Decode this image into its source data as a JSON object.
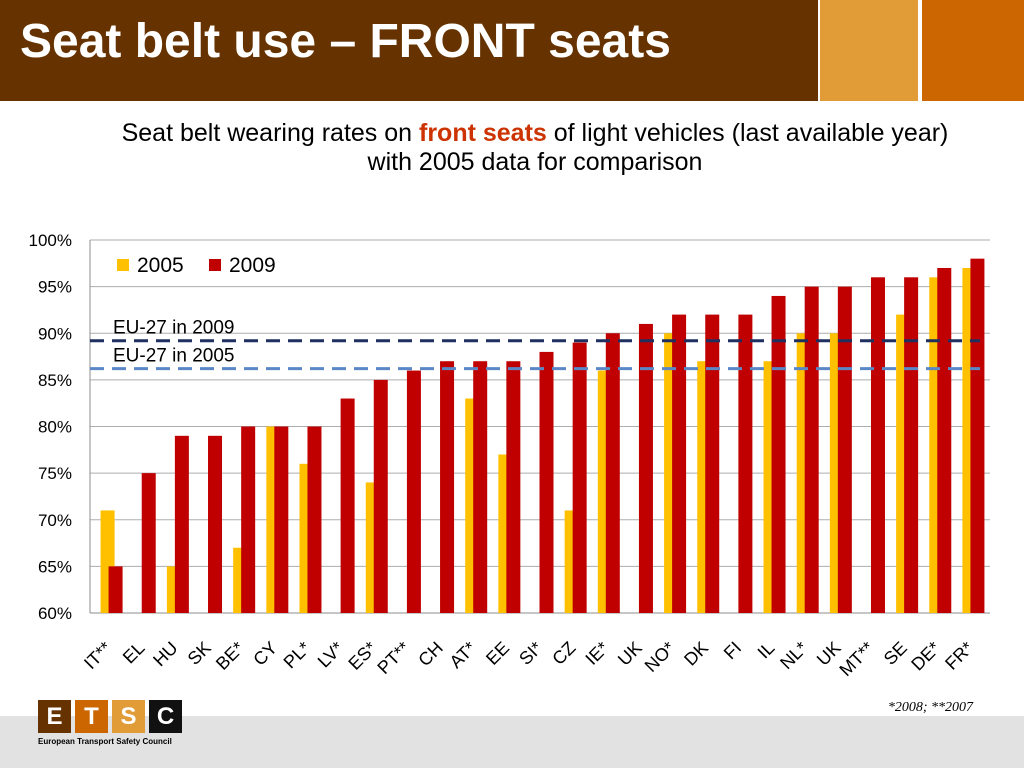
{
  "header": {
    "title": "Seat belt use – FRONT seats",
    "colors": {
      "title_bar": "#663300",
      "accent_light": "#E19B37",
      "accent_dark": "#CC6600"
    }
  },
  "chart_data": {
    "type": "bar",
    "title": {
      "prefix": "Seat belt wearing rates on ",
      "emphasis": "front seats",
      "suffix": " of light vehicles (last available year)",
      "emphasis_color": "#CC3300"
    },
    "subtitle": "with 2005 data for comparison",
    "categories": [
      "IT**",
      "EL",
      "HU",
      "SK",
      "BE*",
      "CY",
      "PL*",
      "LV*",
      "ES*",
      "PT**",
      "CH",
      "AT*",
      "EE",
      "SI*",
      "CZ",
      "IE*",
      "UK",
      "NO*",
      "DK",
      "FI",
      "IL",
      "NL*",
      "UK",
      "MT**",
      "SE",
      "DE*",
      "FR*"
    ],
    "series": [
      {
        "name": "2005",
        "color": "#FFC000",
        "values": [
          71,
          null,
          65,
          null,
          67,
          80,
          76,
          null,
          74,
          null,
          null,
          83,
          77,
          null,
          71,
          86,
          null,
          90,
          87,
          null,
          87,
          90,
          90,
          null,
          92,
          96,
          97
        ]
      },
      {
        "name": "2009",
        "color": "#C00000",
        "values": [
          65,
          75,
          79,
          79,
          80,
          80,
          80,
          83,
          85,
          86,
          87,
          87,
          87,
          88,
          89,
          90,
          91,
          92,
          92,
          92,
          94,
          95,
          95,
          96,
          96,
          97,
          98
        ]
      }
    ],
    "ylim": [
      60,
      100
    ],
    "yticks": [
      60,
      65,
      70,
      75,
      80,
      85,
      90,
      95,
      100
    ],
    "ytick_labels": [
      "60%",
      "65%",
      "70%",
      "75%",
      "80%",
      "85%",
      "90%",
      "95%",
      "100%"
    ],
    "grid": true,
    "legend": "top-left",
    "reference_lines": [
      {
        "label": "EU-27 in 2009",
        "value": 89.2,
        "color": "#1F2F5F",
        "style": "dashed"
      },
      {
        "label": "EU-27 in 2005",
        "value": 86.2,
        "color": "#5B87C7",
        "style": "dashed"
      }
    ],
    "footnote": "*2008; **2007"
  },
  "footer": {
    "band_color": "#E2E2E2",
    "logo": {
      "letters": [
        "E",
        "T",
        "S",
        "C"
      ],
      "colors": [
        "#663300",
        "#CC6600",
        "#E19B37",
        "#111111"
      ]
    },
    "organization": "European Transport Safety Council"
  }
}
